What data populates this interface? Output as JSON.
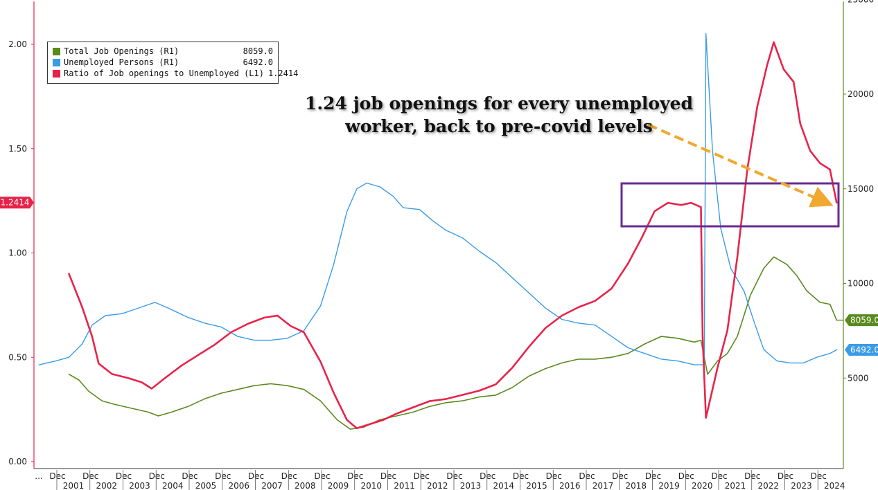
{
  "annotation": {
    "line1": "1.24 job openings for every unemployed",
    "line2": "worker, back to pre-covid levels"
  },
  "colors": {
    "openings": "#5a8a1e",
    "unemployed": "#3a9be6",
    "ratio": "#e8234a",
    "arrow": "#f0a830",
    "box": "#6a2a90",
    "left_axis": "#e8234a",
    "right_axis": "#5a8a1e"
  },
  "legend": [
    {
      "name": "Total Job Openings (R1)",
      "value": "8059.0",
      "color": "#5a8a1e"
    },
    {
      "name": "Unemployed Persons (R1)",
      "value": "6492.0",
      "color": "#3a9be6"
    },
    {
      "name": "Ratio of Job openings to Unemployed (L1)",
      "value": "1.2414",
      "color": "#e8234a"
    }
  ],
  "axis_badges": {
    "left": "1.2414",
    "right_openings": "8059.0",
    "right_unemployed": "6492.0"
  },
  "chart_data": {
    "type": "line",
    "title": "",
    "xlabel": "",
    "ylabel": "",
    "left_axis": {
      "ticks": [
        "0.00",
        "0.50",
        "1.00",
        "1.50",
        "2.00"
      ],
      "ylim": [
        0,
        2.2
      ]
    },
    "right_axis": {
      "ticks": [
        "5000",
        "10000",
        "15000",
        "20000",
        "25000"
      ],
      "ylim": [
        0,
        25000
      ]
    },
    "x_top_labels": [
      "...",
      "Dec",
      "Dec",
      "Dec",
      "Dec",
      "Dec",
      "Dec",
      "Dec",
      "Dec",
      "Dec",
      "Dec",
      "Dec",
      "Dec",
      "Dec",
      "Dec",
      "Dec",
      "Dec",
      "Dec",
      "Dec",
      "Dec",
      "Dec",
      "Dec",
      "Dec",
      "Dec",
      "Dec"
    ],
    "x_years": [
      "2001",
      "2002",
      "2003",
      "2004",
      "2005",
      "2006",
      "2007",
      "2008",
      "2009",
      "2010",
      "2011",
      "2012",
      "2013",
      "2014",
      "2015",
      "2016",
      "2017",
      "2018",
      "2019",
      "2020",
      "2021",
      "2022",
      "2023",
      "2024"
    ],
    "series": [
      {
        "name": "Total Job Openings (R1)",
        "axis": "right",
        "points": [
          [
            2000.9,
            5200
          ],
          [
            2001.2,
            4900
          ],
          [
            2001.5,
            4300
          ],
          [
            2001.9,
            3800
          ],
          [
            2002.3,
            3600
          ],
          [
            2002.8,
            3400
          ],
          [
            2003.3,
            3200
          ],
          [
            2003.6,
            3000
          ],
          [
            2004.0,
            3200
          ],
          [
            2004.5,
            3500
          ],
          [
            2005.0,
            3900
          ],
          [
            2005.5,
            4200
          ],
          [
            2006.0,
            4400
          ],
          [
            2006.5,
            4600
          ],
          [
            2007.0,
            4700
          ],
          [
            2007.5,
            4600
          ],
          [
            2008.0,
            4400
          ],
          [
            2008.5,
            3800
          ],
          [
            2009.0,
            2800
          ],
          [
            2009.4,
            2300
          ],
          [
            2009.8,
            2400
          ],
          [
            2010.3,
            2800
          ],
          [
            2010.8,
            3000
          ],
          [
            2011.3,
            3200
          ],
          [
            2011.8,
            3500
          ],
          [
            2012.3,
            3700
          ],
          [
            2012.8,
            3800
          ],
          [
            2013.3,
            4000
          ],
          [
            2013.8,
            4100
          ],
          [
            2014.3,
            4500
          ],
          [
            2014.8,
            5100
          ],
          [
            2015.3,
            5500
          ],
          [
            2015.8,
            5800
          ],
          [
            2016.3,
            6000
          ],
          [
            2016.8,
            6000
          ],
          [
            2017.3,
            6100
          ],
          [
            2017.8,
            6300
          ],
          [
            2018.3,
            6800
          ],
          [
            2018.8,
            7200
          ],
          [
            2019.3,
            7100
          ],
          [
            2019.8,
            6900
          ],
          [
            2020.0,
            7000
          ],
          [
            2020.2,
            5200
          ],
          [
            2020.5,
            5900
          ],
          [
            2020.8,
            6300
          ],
          [
            2021.1,
            7200
          ],
          [
            2021.5,
            9400
          ],
          [
            2021.9,
            10800
          ],
          [
            2022.2,
            11400
          ],
          [
            2022.6,
            11000
          ],
          [
            2022.9,
            10400
          ],
          [
            2023.2,
            9600
          ],
          [
            2023.6,
            9000
          ],
          [
            2023.9,
            8900
          ],
          [
            2024.1,
            8059
          ]
        ]
      },
      {
        "name": "Unemployed Persons (R1)",
        "axis": "right",
        "points": [
          [
            2000.0,
            5700
          ],
          [
            2000.5,
            5900
          ],
          [
            2000.9,
            6100
          ],
          [
            2001.3,
            6800
          ],
          [
            2001.6,
            7800
          ],
          [
            2002.0,
            8300
          ],
          [
            2002.5,
            8400
          ],
          [
            2003.0,
            8700
          ],
          [
            2003.5,
            9000
          ],
          [
            2003.9,
            8700
          ],
          [
            2004.5,
            8200
          ],
          [
            2005.0,
            7900
          ],
          [
            2005.5,
            7700
          ],
          [
            2006.0,
            7200
          ],
          [
            2006.5,
            7000
          ],
          [
            2007.0,
            7000
          ],
          [
            2007.5,
            7100
          ],
          [
            2008.0,
            7500
          ],
          [
            2008.5,
            8800
          ],
          [
            2008.9,
            11000
          ],
          [
            2009.3,
            13800
          ],
          [
            2009.6,
            15000
          ],
          [
            2009.9,
            15300
          ],
          [
            2010.3,
            15100
          ],
          [
            2010.7,
            14600
          ],
          [
            2011.0,
            14000
          ],
          [
            2011.5,
            13900
          ],
          [
            2011.9,
            13300
          ],
          [
            2012.3,
            12800
          ],
          [
            2012.8,
            12400
          ],
          [
            2013.3,
            11700
          ],
          [
            2013.8,
            11100
          ],
          [
            2014.3,
            10300
          ],
          [
            2014.8,
            9500
          ],
          [
            2015.3,
            8700
          ],
          [
            2015.8,
            8100
          ],
          [
            2016.3,
            7900
          ],
          [
            2016.8,
            7800
          ],
          [
            2017.3,
            7200
          ],
          [
            2017.8,
            6600
          ],
          [
            2018.3,
            6300
          ],
          [
            2018.8,
            6000
          ],
          [
            2019.3,
            5900
          ],
          [
            2019.8,
            5700
          ],
          [
            2020.1,
            5700
          ],
          [
            2020.15,
            23200
          ],
          [
            2020.35,
            17000
          ],
          [
            2020.6,
            12900
          ],
          [
            2020.9,
            10800
          ],
          [
            2021.3,
            9600
          ],
          [
            2021.6,
            8000
          ],
          [
            2021.9,
            6500
          ],
          [
            2022.3,
            5900
          ],
          [
            2022.7,
            5800
          ],
          [
            2023.1,
            5800
          ],
          [
            2023.5,
            6100
          ],
          [
            2023.9,
            6300
          ],
          [
            2024.1,
            6492
          ]
        ]
      },
      {
        "name": "Ratio of Job openings to Unemployed (L1)",
        "axis": "left",
        "points": [
          [
            2000.9,
            0.9
          ],
          [
            2001.3,
            0.74
          ],
          [
            2001.6,
            0.6
          ],
          [
            2001.8,
            0.47
          ],
          [
            2002.2,
            0.42
          ],
          [
            2002.7,
            0.4
          ],
          [
            2003.1,
            0.38
          ],
          [
            2003.4,
            0.35
          ],
          [
            2003.8,
            0.4
          ],
          [
            2004.3,
            0.46
          ],
          [
            2004.8,
            0.51
          ],
          [
            2005.3,
            0.56
          ],
          [
            2005.8,
            0.62
          ],
          [
            2006.3,
            0.66
          ],
          [
            2006.8,
            0.69
          ],
          [
            2007.2,
            0.7
          ],
          [
            2007.6,
            0.65
          ],
          [
            2008.0,
            0.62
          ],
          [
            2008.5,
            0.48
          ],
          [
            2008.9,
            0.33
          ],
          [
            2009.3,
            0.2
          ],
          [
            2009.6,
            0.16
          ],
          [
            2010.0,
            0.18
          ],
          [
            2010.4,
            0.2
          ],
          [
            2010.8,
            0.23
          ],
          [
            2011.3,
            0.26
          ],
          [
            2011.8,
            0.29
          ],
          [
            2012.3,
            0.3
          ],
          [
            2012.8,
            0.32
          ],
          [
            2013.3,
            0.34
          ],
          [
            2013.8,
            0.37
          ],
          [
            2014.3,
            0.45
          ],
          [
            2014.8,
            0.55
          ],
          [
            2015.3,
            0.64
          ],
          [
            2015.8,
            0.7
          ],
          [
            2016.3,
            0.74
          ],
          [
            2016.8,
            0.77
          ],
          [
            2017.3,
            0.83
          ],
          [
            2017.8,
            0.95
          ],
          [
            2018.2,
            1.07
          ],
          [
            2018.6,
            1.2
          ],
          [
            2019.0,
            1.24
          ],
          [
            2019.4,
            1.23
          ],
          [
            2019.7,
            1.24
          ],
          [
            2020.0,
            1.22
          ],
          [
            2020.05,
            0.6
          ],
          [
            2020.15,
            0.21
          ],
          [
            2020.5,
            0.45
          ],
          [
            2020.8,
            0.63
          ],
          [
            2021.1,
            0.98
          ],
          [
            2021.4,
            1.4
          ],
          [
            2021.7,
            1.7
          ],
          [
            2022.0,
            1.9
          ],
          [
            2022.2,
            2.01
          ],
          [
            2022.5,
            1.88
          ],
          [
            2022.8,
            1.82
          ],
          [
            2023.0,
            1.62
          ],
          [
            2023.3,
            1.49
          ],
          [
            2023.6,
            1.43
          ],
          [
            2023.9,
            1.4
          ],
          [
            2024.1,
            1.2414
          ]
        ]
      }
    ]
  }
}
